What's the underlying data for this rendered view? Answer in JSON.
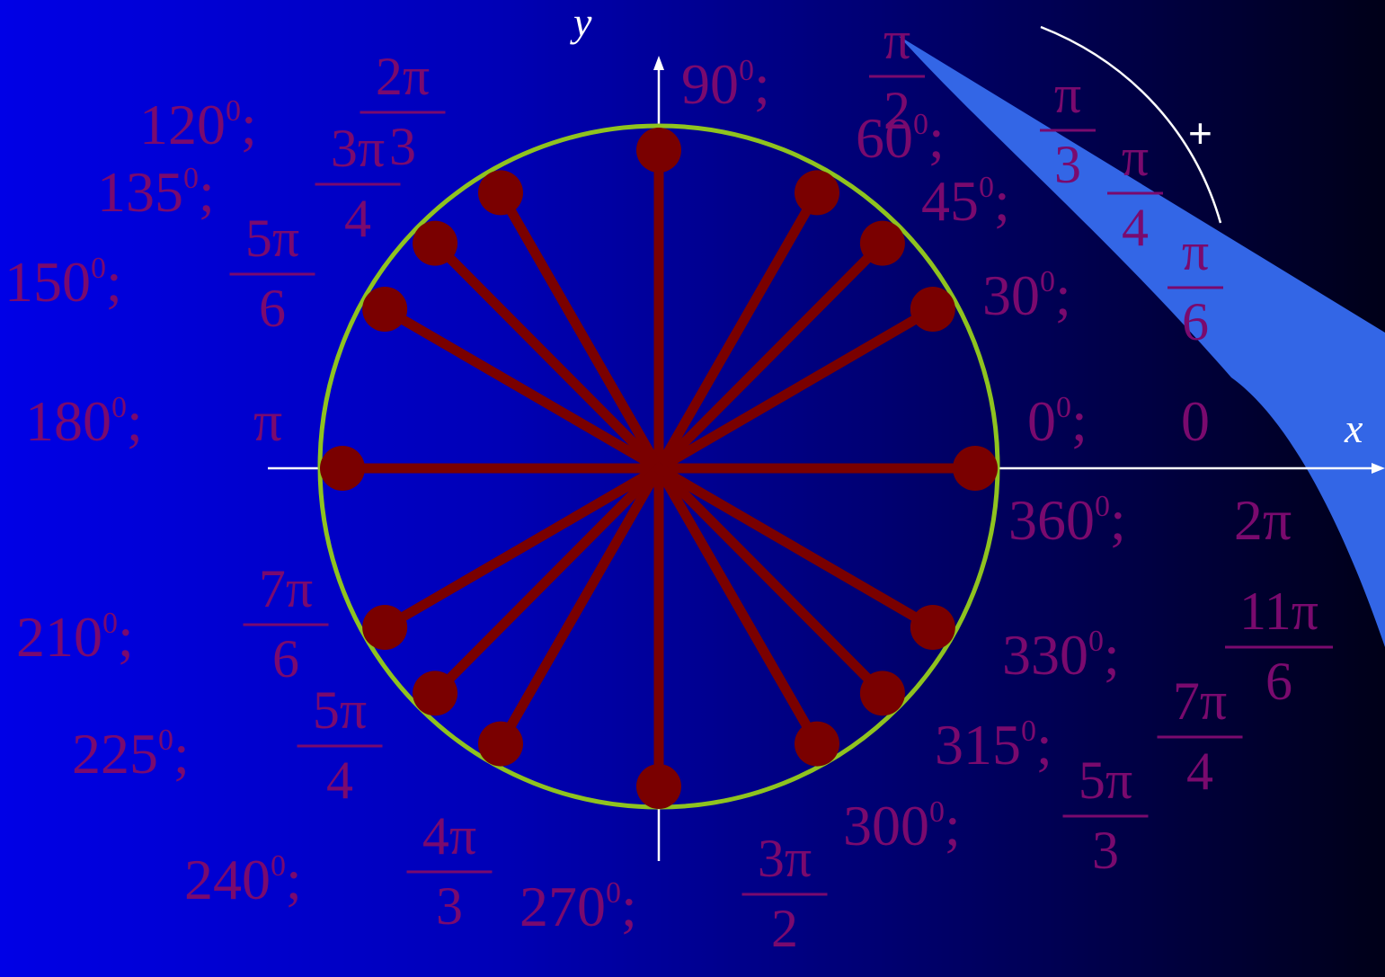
{
  "axes": {
    "x_label": "x",
    "y_label": "y"
  },
  "direction_marker": "+",
  "colors": {
    "circle": "#8fc31f",
    "radius": "#7a0000",
    "label": "#7a0a6e",
    "wedge": "#3366e6",
    "axis": "#ffffff"
  },
  "angles": [
    {
      "deg": "0",
      "rad": "0",
      "angle": 0
    },
    {
      "deg": "30",
      "rad_num": "π",
      "rad_den": "6",
      "angle": 30
    },
    {
      "deg": "45",
      "rad_num": "π",
      "rad_den": "4",
      "angle": 45
    },
    {
      "deg": "60",
      "rad_num": "π",
      "rad_den": "3",
      "angle": 60
    },
    {
      "deg": "90",
      "rad_num": "π",
      "rad_den": "2",
      "angle": 90
    },
    {
      "deg": "120",
      "rad_num": "2π",
      "rad_den": "3",
      "angle": 120
    },
    {
      "deg": "135",
      "rad_num": "3π",
      "rad_den": "4",
      "angle": 135
    },
    {
      "deg": "150",
      "rad_num": "5π",
      "rad_den": "6",
      "angle": 150
    },
    {
      "deg": "180",
      "rad": "π",
      "angle": 180
    },
    {
      "deg": "210",
      "rad_num": "7π",
      "rad_den": "6",
      "angle": 210
    },
    {
      "deg": "225",
      "rad_num": "5π",
      "rad_den": "4",
      "angle": 225
    },
    {
      "deg": "240",
      "rad_num": "4π",
      "rad_den": "3",
      "angle": 240
    },
    {
      "deg": "270",
      "rad_num": "3π",
      "rad_den": "2",
      "angle": 270
    },
    {
      "deg": "300",
      "rad_num": "5π",
      "rad_den": "3",
      "angle": 300
    },
    {
      "deg": "315",
      "rad_num": "7π",
      "rad_den": "4",
      "angle": 315
    },
    {
      "deg": "330",
      "rad_num": "11π",
      "rad_den": "6",
      "angle": 330
    },
    {
      "deg": "360",
      "rad": "2π",
      "angle": 360
    }
  ]
}
